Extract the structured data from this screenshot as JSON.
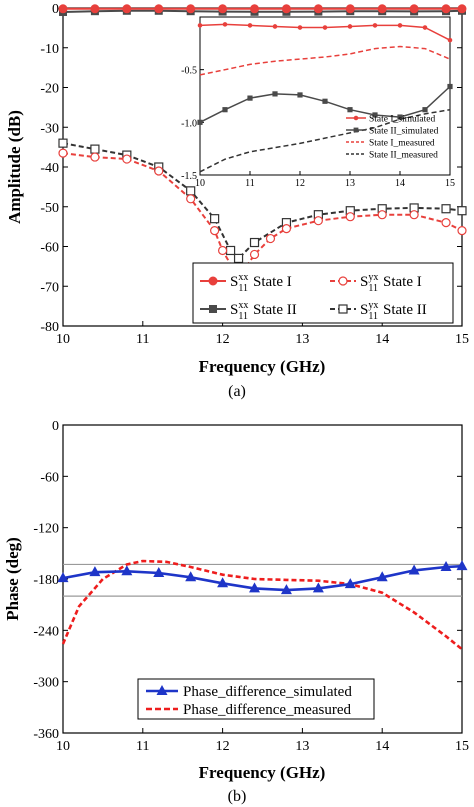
{
  "chart_data": [
    {
      "type": "line",
      "caption": "(a)",
      "xlabel": "Frequency (GHz)",
      "ylabel": "Amplitude (dB)",
      "xlim": [
        10,
        15
      ],
      "ylim": [
        -80,
        0
      ],
      "xticks": [
        "10",
        "11",
        "12",
        "13",
        "14",
        "15"
      ],
      "yticks": [
        "0",
        "-10",
        "-20",
        "-30",
        "-40",
        "-50",
        "-60",
        "-70",
        "-80"
      ],
      "legend_position": "bottom-right",
      "series": [
        {
          "name": "S11xx State I",
          "name_main": "S",
          "name_sub": "11",
          "name_sup": "xx",
          "name_tail": "State I",
          "color": "#e8403c",
          "style": "solid",
          "marker": "filled-circle",
          "x": [
            10.0,
            10.4,
            10.8,
            11.2,
            11.6,
            12.0,
            12.4,
            12.8,
            13.2,
            13.6,
            14.0,
            14.4,
            14.8,
            15.0
          ],
          "y": [
            -0.2,
            -0.2,
            -0.2,
            -0.2,
            -0.2,
            -0.2,
            -0.2,
            -0.2,
            -0.2,
            -0.2,
            -0.2,
            -0.2,
            -0.2,
            -0.2
          ]
        },
        {
          "name": "S11yx State I",
          "name_main": "S",
          "name_sub": "11",
          "name_sup": "yx",
          "name_tail": "State I",
          "color": "#e8403c",
          "style": "dashed",
          "marker": "open-circle",
          "x": [
            10.0,
            10.4,
            10.8,
            11.2,
            11.6,
            11.9,
            12.0,
            12.2,
            12.4,
            12.6,
            12.8,
            13.2,
            13.6,
            14.0,
            14.4,
            14.8,
            15.0
          ],
          "y": [
            -36.5,
            -37.5,
            -38,
            -41,
            -48,
            -56,
            -61,
            -68,
            -62,
            -58,
            -55.5,
            -53.5,
            -52.5,
            -52,
            -52,
            -54,
            -56
          ]
        },
        {
          "name": "S11xx State II",
          "name_main": "S",
          "name_sub": "11",
          "name_sup": "xx",
          "name_tail": "State II",
          "color": "#4a4a4a",
          "style": "solid",
          "marker": "filled-square",
          "x": [
            10.0,
            10.4,
            10.8,
            11.2,
            11.6,
            12.0,
            12.4,
            12.8,
            13.2,
            13.6,
            14.0,
            14.4,
            14.8,
            15.0
          ],
          "y": [
            -1.0,
            -0.8,
            -0.7,
            -0.7,
            -0.8,
            -0.9,
            -0.95,
            -0.95,
            -0.9,
            -0.8,
            -0.8,
            -0.85,
            -0.8,
            -0.7
          ]
        },
        {
          "name": "S11yx State II",
          "name_main": "S",
          "name_sub": "11",
          "name_sup": "yx",
          "name_tail": "State II",
          "color": "#333333",
          "style": "dashed",
          "marker": "open-square",
          "x": [
            10.0,
            10.4,
            10.8,
            11.2,
            11.6,
            11.9,
            12.1,
            12.2,
            12.4,
            12.8,
            13.2,
            13.6,
            14.0,
            14.4,
            14.8,
            15.0
          ],
          "y": [
            -34,
            -35.5,
            -37,
            -40,
            -46,
            -53,
            -61,
            -63,
            -59,
            -54,
            -52,
            -51,
            -50.5,
            -50.3,
            -50.5,
            -51
          ]
        }
      ],
      "inset": {
        "xlim": [
          10,
          15
        ],
        "ylim": [
          -1.5,
          0
        ],
        "xticks": [
          "10",
          "11",
          "12",
          "13",
          "14",
          "15"
        ],
        "yticks": [
          "-0.5",
          "-1.0",
          "-1.5"
        ],
        "legend": [
          "State I_simulated",
          "State II_simulated",
          "State I_measured",
          "State II_measured"
        ],
        "series": [
          {
            "name": "State I_simulated",
            "color": "#e8403c",
            "style": "solid",
            "marker": "small-dot",
            "x": [
              10.0,
              10.5,
              11.0,
              11.5,
              12.0,
              12.5,
              13.0,
              13.5,
              14.0,
              14.5,
              15.0
            ],
            "y": [
              -0.08,
              -0.07,
              -0.08,
              -0.09,
              -0.1,
              -0.1,
              -0.09,
              -0.08,
              -0.08,
              -0.1,
              -0.22
            ]
          },
          {
            "name": "State II_simulated",
            "color": "#4a4a4a",
            "style": "solid",
            "marker": "filled-square",
            "x": [
              10.0,
              10.5,
              11.0,
              11.5,
              12.0,
              12.5,
              13.0,
              13.5,
              14.0,
              14.5,
              15.0
            ],
            "y": [
              -1.0,
              -0.88,
              -0.77,
              -0.73,
              -0.74,
              -0.8,
              -0.88,
              -0.93,
              -0.95,
              -0.88,
              -0.66
            ]
          },
          {
            "name": "State I_measured",
            "color": "#e8403c",
            "style": "dashed",
            "marker": "none",
            "x": [
              10.0,
              10.5,
              11.0,
              11.5,
              12.0,
              12.5,
              13.0,
              13.5,
              14.0,
              14.5,
              15.0
            ],
            "y": [
              -0.55,
              -0.5,
              -0.45,
              -0.42,
              -0.4,
              -0.38,
              -0.35,
              -0.3,
              -0.28,
              -0.3,
              -0.4
            ]
          },
          {
            "name": "State II_measured",
            "color": "#333333",
            "style": "dashed",
            "marker": "none",
            "x": [
              10.0,
              10.5,
              11.0,
              11.5,
              12.0,
              12.5,
              13.0,
              13.5,
              14.0,
              14.5,
              15.0
            ],
            "y": [
              -1.47,
              -1.35,
              -1.28,
              -1.24,
              -1.2,
              -1.15,
              -1.1,
              -1.05,
              -0.97,
              -0.92,
              -0.88
            ]
          }
        ]
      }
    },
    {
      "type": "line",
      "caption": "(b)",
      "xlabel": "Frequency (GHz)",
      "ylabel": "Phase (deg)",
      "xlim": [
        10,
        15
      ],
      "ylim": [
        -360,
        0
      ],
      "xticks": [
        "10",
        "11",
        "12",
        "13",
        "14",
        "15"
      ],
      "yticks": [
        "0",
        "-60",
        "-120",
        "-180",
        "-240",
        "-300",
        "-360"
      ],
      "reference_lines": [
        -163,
        -200
      ],
      "legend_position": "bottom-center",
      "series": [
        {
          "name": "Phase_difference_simulated",
          "color": "#1e35c8",
          "style": "solid",
          "marker": "filled-triangle",
          "x": [
            10.0,
            10.4,
            10.8,
            11.2,
            11.6,
            12.0,
            12.4,
            12.8,
            13.2,
            13.6,
            14.0,
            14.4,
            14.8,
            15.0
          ],
          "y": [
            -179,
            -172,
            -171,
            -173,
            -178,
            -185,
            -191,
            -193,
            -191,
            -186,
            -178,
            -170,
            -166,
            -165
          ]
        },
        {
          "name": "Phase_difference_measured",
          "color": "#ee1d1d",
          "style": "dashed",
          "marker": "none",
          "x": [
            10.0,
            10.2,
            10.5,
            10.8,
            11.0,
            11.3,
            11.6,
            12.0,
            12.4,
            12.8,
            13.2,
            13.6,
            14.0,
            14.4,
            14.8,
            15.0
          ],
          "y": [
            -256,
            -212,
            -180,
            -163,
            -159,
            -160,
            -166,
            -175,
            -180,
            -181,
            -182,
            -186,
            -196,
            -219,
            -247,
            -262
          ]
        }
      ]
    }
  ]
}
